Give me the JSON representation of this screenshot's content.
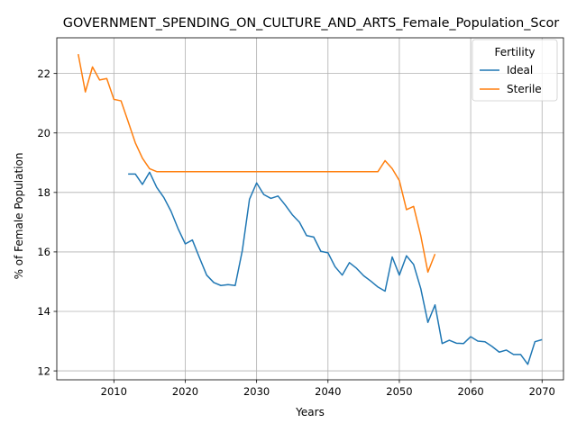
{
  "chart_data": {
    "type": "line",
    "title": "GOVERNMENT_SPENDING_ON_CULTURE_AND_ARTS_Female_Population_Scor",
    "xlabel": "Years",
    "ylabel": "% of Female Population",
    "xlim": [
      2002,
      2073
    ],
    "ylim": [
      11.7,
      23.2
    ],
    "xticks": [
      2010,
      2020,
      2030,
      2040,
      2050,
      2060,
      2070
    ],
    "yticks": [
      12,
      14,
      16,
      18,
      20,
      22
    ],
    "grid": true,
    "legend": {
      "title": "Fertility",
      "placement": "top-right"
    },
    "series": [
      {
        "name": "Ideal",
        "color": "#1f77b4",
        "x": [
          2012,
          2013,
          2014,
          2015,
          2016,
          2017,
          2018,
          2019,
          2020,
          2021,
          2022,
          2023,
          2024,
          2025,
          2026,
          2027,
          2028,
          2029,
          2030,
          2031,
          2032,
          2033,
          2034,
          2035,
          2036,
          2037,
          2038,
          2039,
          2040,
          2041,
          2042,
          2043,
          2044,
          2045,
          2046,
          2047,
          2048,
          2049,
          2050,
          2051,
          2052,
          2053,
          2054,
          2055,
          2056,
          2057,
          2058,
          2059,
          2060,
          2061,
          2062,
          2063,
          2064,
          2065,
          2066,
          2067,
          2068,
          2069,
          2070
        ],
        "y": [
          18.62,
          18.62,
          18.27,
          18.68,
          18.17,
          17.83,
          17.37,
          16.78,
          16.27,
          16.4,
          15.8,
          15.22,
          14.97,
          14.87,
          14.9,
          14.87,
          16.05,
          17.77,
          18.32,
          17.93,
          17.8,
          17.88,
          17.58,
          17.25,
          17.0,
          16.55,
          16.5,
          16.02,
          15.97,
          15.5,
          15.22,
          15.64,
          15.45,
          15.2,
          15.02,
          14.82,
          14.68,
          15.83,
          15.22,
          15.87,
          15.58,
          14.77,
          13.63,
          14.22,
          12.92,
          13.03,
          12.93,
          12.92,
          13.15,
          13.0,
          12.98,
          12.82,
          12.63,
          12.7,
          12.55,
          12.55,
          12.22,
          12.98,
          13.05
        ]
      },
      {
        "name": "Sterile",
        "color": "#ff7f0e",
        "x": [
          2005,
          2006,
          2007,
          2008,
          2009,
          2010,
          2011,
          2012,
          2013,
          2014,
          2015,
          2016,
          2017,
          2018,
          2019,
          2020,
          2021,
          2022,
          2023,
          2024,
          2025,
          2026,
          2027,
          2028,
          2029,
          2030,
          2031,
          2032,
          2033,
          2034,
          2035,
          2036,
          2037,
          2038,
          2039,
          2040,
          2041,
          2042,
          2043,
          2044,
          2045,
          2046,
          2047,
          2048,
          2049,
          2050,
          2051,
          2052,
          2053,
          2054,
          2055
        ],
        "y": [
          22.65,
          21.38,
          22.22,
          21.78,
          21.83,
          21.13,
          21.08,
          20.38,
          19.67,
          19.15,
          18.8,
          18.7,
          18.7,
          18.7,
          18.7,
          18.7,
          18.7,
          18.7,
          18.7,
          18.7,
          18.7,
          18.7,
          18.7,
          18.7,
          18.7,
          18.7,
          18.7,
          18.7,
          18.7,
          18.7,
          18.7,
          18.7,
          18.7,
          18.7,
          18.7,
          18.7,
          18.7,
          18.7,
          18.7,
          18.7,
          18.7,
          18.7,
          18.7,
          19.07,
          18.8,
          18.4,
          17.42,
          17.53,
          16.55,
          15.32,
          15.93
        ]
      }
    ]
  }
}
